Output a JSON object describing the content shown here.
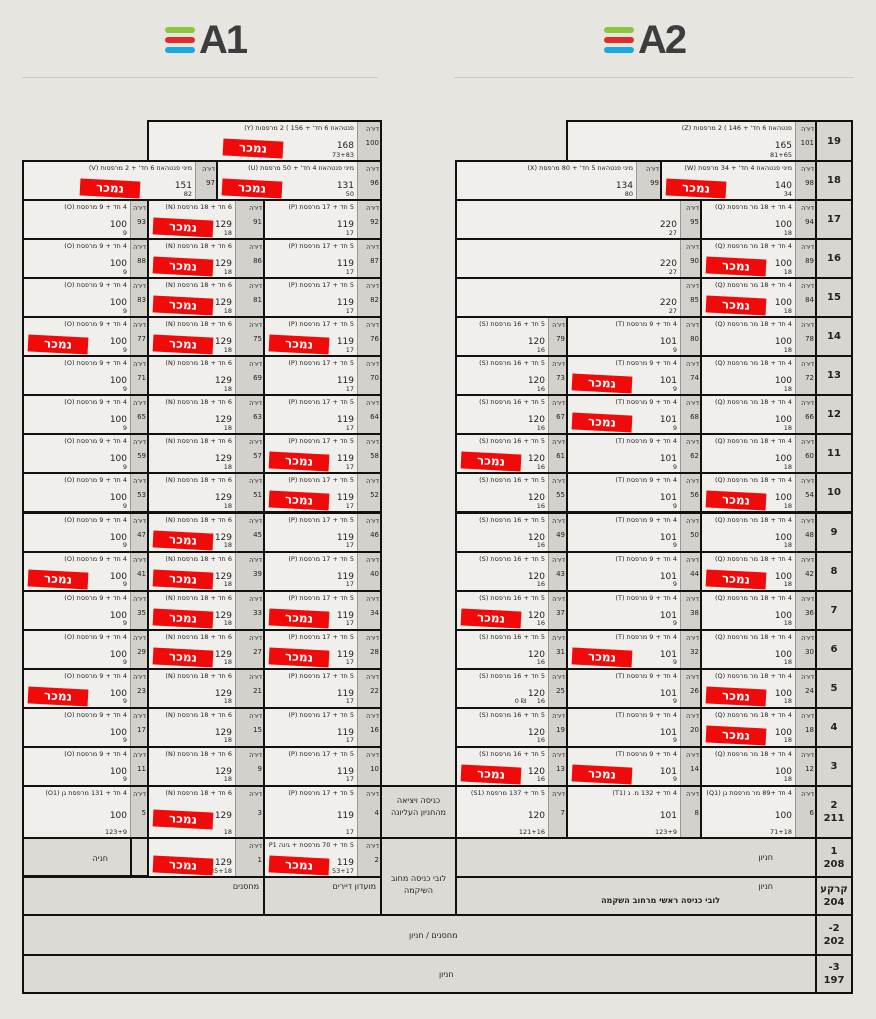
{
  "buildings": [
    {
      "name": "A1",
      "logo_colors": [
        "#8cc63f",
        "#e02b2b",
        "#19a8e6"
      ]
    },
    {
      "name": "A2",
      "logo_colors": [
        "#8cc63f",
        "#e02b2b",
        "#19a8e6"
      ]
    }
  ],
  "apt_label": "דירה",
  "sold_label": "נמכר",
  "colors": {
    "sold": "#f00a0a",
    "cell": "#f1efeb",
    "label_col": "#d3d1cb",
    "background": "#e7e5e0"
  },
  "unit_types": {
    "O": {
      "type": "4 חד + 9 מרפסת (O)",
      "area": "100",
      "bal": "9"
    },
    "N": {
      "type": "6 חד + 18 מרפסת (N)",
      "area": "129",
      "bal": "18"
    },
    "P": {
      "type": "5 חד + 17 מרפסת (P)",
      "area": "119",
      "bal": "17"
    },
    "S": {
      "type": "5 חד + 16 מרפסת (S)",
      "area": "120",
      "bal": "16"
    },
    "T": {
      "type": "4 חד + 9 מרפסת (T)",
      "area": "101",
      "bal": "9"
    },
    "Q": {
      "type": "4 חד + 18 מר מרפסת (Q)",
      "area": "100",
      "bal": "18"
    },
    "B": {
      "type": "",
      "area": "220",
      "bal": "27"
    },
    "Y": {
      "type": "פנטהאוז 6 חד' + 156 ) 2 מרפסות (Y)",
      "area": "168",
      "bal": "73+83"
    },
    "Z": {
      "type": "פנטהאוז 6 חד' + 146 ) 2 מרפסות (Z)",
      "area": "165",
      "bal": "81+65"
    },
    "V": {
      "type": "מיני פנטהאוז 6 חד' + 2 מרפסות (V)",
      "area": "151",
      "bal": "82"
    },
    "U": {
      "type": "מיני פנטהאוז 4 חד' + 50 מרפסת (U)",
      "area": "131",
      "bal": "50"
    },
    "X": {
      "type": "מיני פנטהאוז 5 חד' + 80 מרפסת (X)",
      "area": "134",
      "bal": "80"
    },
    "W": {
      "type": "מיני פנטהאוז 4 חד' + 34 מרפסת (W)",
      "area": "140",
      "bal": "34"
    },
    "O1": {
      "type": "4 חד + 131 מרפסת גן (O1)",
      "area": "100",
      "bal": "123+9"
    },
    "S1": {
      "type": "5 חד + 137 מרפסת (S1)",
      "area": "120",
      "bal": "121+16"
    },
    "T1": {
      "type": "4 חד + 132 מ. ג (T1)",
      "area": "101",
      "bal": "123+9"
    },
    "Q1": {
      "type": "4 חד +89 מר מרפסת גן (Q1)",
      "area": "100",
      "bal": "71+18"
    },
    "N0": {
      "type": "",
      "area": "129",
      "bal": "135+18"
    },
    "P1": {
      "type": "5 חד + 70 מרפסת + גינה P1",
      "area": "119",
      "bal": "53+17"
    }
  },
  "floors": [
    {
      "label": "19",
      "units": [
        {
          "u": "Y",
          "apt": "100",
          "sold": true
        },
        {
          "u": "Z",
          "apt": "101",
          "sold": false
        }
      ]
    },
    {
      "label": "18",
      "units": [
        {
          "u": "V",
          "apt": "97",
          "sold": true
        },
        {
          "u": "U",
          "apt": "96",
          "sold": true
        },
        {
          "u": "X",
          "apt": "99",
          "sold": false
        },
        {
          "u": "W",
          "apt": "98",
          "sold": true
        }
      ]
    },
    {
      "label": "17",
      "units": [
        {
          "u": "O",
          "apt": "93",
          "sold": false
        },
        {
          "u": "N",
          "apt": "91",
          "sold": true
        },
        {
          "u": "P",
          "apt": "92",
          "sold": false
        },
        {
          "u": "B",
          "apt": "95",
          "sold": false
        },
        {
          "u": "Q",
          "apt": "94",
          "sold": false
        }
      ]
    },
    {
      "label": "16",
      "units": [
        {
          "u": "O",
          "apt": "88",
          "sold": false
        },
        {
          "u": "N",
          "apt": "86",
          "sold": true
        },
        {
          "u": "P",
          "apt": "87",
          "sold": false
        },
        {
          "u": "B",
          "apt": "90",
          "sold": false
        },
        {
          "u": "Q",
          "apt": "89",
          "sold": true
        }
      ]
    },
    {
      "label": "15",
      "units": [
        {
          "u": "O",
          "apt": "83",
          "sold": false
        },
        {
          "u": "N",
          "apt": "81",
          "sold": true
        },
        {
          "u": "P",
          "apt": "82",
          "sold": false
        },
        {
          "u": "B",
          "apt": "85",
          "sold": false
        },
        {
          "u": "Q",
          "apt": "84",
          "sold": true
        }
      ]
    },
    {
      "label": "14",
      "units": [
        {
          "u": "O",
          "apt": "77",
          "sold": true
        },
        {
          "u": "N",
          "apt": "75",
          "sold": true
        },
        {
          "u": "P",
          "apt": "76",
          "sold": true
        },
        {
          "u": "S",
          "apt": "79",
          "sold": false
        },
        {
          "u": "T",
          "apt": "80",
          "sold": false
        },
        {
          "u": "Q",
          "apt": "78",
          "sold": false
        }
      ]
    },
    {
      "label": "13",
      "units": [
        {
          "u": "O",
          "apt": "71",
          "sold": false
        },
        {
          "u": "N",
          "apt": "69",
          "sold": false
        },
        {
          "u": "P",
          "apt": "70",
          "sold": false
        },
        {
          "u": "S",
          "apt": "73",
          "sold": false
        },
        {
          "u": "T",
          "apt": "74",
          "sold": true
        },
        {
          "u": "Q",
          "apt": "72",
          "sold": false
        }
      ]
    },
    {
      "label": "12",
      "units": [
        {
          "u": "O",
          "apt": "65",
          "sold": false
        },
        {
          "u": "N",
          "apt": "63",
          "sold": false
        },
        {
          "u": "P",
          "apt": "64",
          "sold": false
        },
        {
          "u": "S",
          "apt": "67",
          "sold": false
        },
        {
          "u": "T",
          "apt": "68",
          "sold": true
        },
        {
          "u": "Q",
          "apt": "66",
          "sold": false
        }
      ]
    },
    {
      "label": "11",
      "units": [
        {
          "u": "O",
          "apt": "59",
          "sold": false
        },
        {
          "u": "N",
          "apt": "57",
          "sold": false
        },
        {
          "u": "P",
          "apt": "58",
          "sold": true
        },
        {
          "u": "S",
          "apt": "61",
          "sold": true
        },
        {
          "u": "T",
          "apt": "62",
          "sold": false
        },
        {
          "u": "Q",
          "apt": "60",
          "sold": false
        }
      ]
    },
    {
      "label": "10",
      "units": [
        {
          "u": "O",
          "apt": "53",
          "sold": false
        },
        {
          "u": "N",
          "apt": "51",
          "sold": false
        },
        {
          "u": "P",
          "apt": "52",
          "sold": true
        },
        {
          "u": "S",
          "apt": "55",
          "sold": false
        },
        {
          "u": "T",
          "apt": "56",
          "sold": false
        },
        {
          "u": "Q",
          "apt": "54",
          "sold": true
        }
      ]
    },
    {
      "label": "9",
      "units": [
        {
          "u": "O",
          "apt": "47",
          "sold": false
        },
        {
          "u": "N",
          "apt": "45",
          "sold": true
        },
        {
          "u": "P",
          "apt": "46",
          "sold": false
        },
        {
          "u": "S",
          "apt": "49",
          "sold": false
        },
        {
          "u": "T",
          "apt": "50",
          "sold": false
        },
        {
          "u": "Q",
          "apt": "48",
          "sold": false
        }
      ]
    },
    {
      "label": "8",
      "units": [
        {
          "u": "O",
          "apt": "41",
          "sold": true
        },
        {
          "u": "N",
          "apt": "39",
          "sold": true
        },
        {
          "u": "P",
          "apt": "40",
          "sold": false
        },
        {
          "u": "S",
          "apt": "43",
          "sold": false
        },
        {
          "u": "T",
          "apt": "44",
          "sold": false
        },
        {
          "u": "Q",
          "apt": "42",
          "sold": true
        }
      ]
    },
    {
      "label": "7",
      "units": [
        {
          "u": "O",
          "apt": "35",
          "sold": false
        },
        {
          "u": "N",
          "apt": "33",
          "sold": true
        },
        {
          "u": "P",
          "apt": "34",
          "sold": true
        },
        {
          "u": "S",
          "apt": "37",
          "sold": true
        },
        {
          "u": "T",
          "apt": "38",
          "sold": false
        },
        {
          "u": "Q",
          "apt": "36",
          "sold": false
        }
      ]
    },
    {
      "label": "6",
      "units": [
        {
          "u": "O",
          "apt": "29",
          "sold": false
        },
        {
          "u": "N",
          "apt": "27",
          "sold": true
        },
        {
          "u": "P",
          "apt": "28",
          "sold": true
        },
        {
          "u": "S",
          "apt": "31",
          "sold": false
        },
        {
          "u": "T",
          "apt": "32",
          "sold": true
        },
        {
          "u": "Q",
          "apt": "30",
          "sold": false
        }
      ]
    },
    {
      "label": "5",
      "units": [
        {
          "u": "O",
          "apt": "23",
          "sold": true
        },
        {
          "u": "N",
          "apt": "21",
          "sold": false
        },
        {
          "u": "P",
          "apt": "22",
          "sold": false
        },
        {
          "u": "S",
          "apt": "25",
          "sold": false,
          "note": "0 ₪"
        },
        {
          "u": "T",
          "apt": "26",
          "sold": false
        },
        {
          "u": "Q",
          "apt": "24",
          "sold": true
        }
      ]
    },
    {
      "label": "4",
      "units": [
        {
          "u": "O",
          "apt": "17",
          "sold": false
        },
        {
          "u": "N",
          "apt": "15",
          "sold": false
        },
        {
          "u": "P",
          "apt": "16",
          "sold": false
        },
        {
          "u": "S",
          "apt": "19",
          "sold": false
        },
        {
          "u": "T",
          "apt": "20",
          "sold": false
        },
        {
          "u": "Q",
          "apt": "18",
          "sold": true
        }
      ]
    },
    {
      "label": "3",
      "units": [
        {
          "u": "O",
          "apt": "11",
          "sold": false
        },
        {
          "u": "N",
          "apt": "9",
          "sold": false
        },
        {
          "u": "P",
          "apt": "10",
          "sold": false
        },
        {
          "u": "S",
          "apt": "13",
          "sold": true
        },
        {
          "u": "T",
          "apt": "14",
          "sold": true
        },
        {
          "u": "Q",
          "apt": "12",
          "sold": false
        }
      ]
    },
    {
      "label": "2",
      "sub": "211",
      "units": [
        {
          "u": "O1",
          "apt": "5",
          "sold": false
        },
        {
          "u": "N",
          "apt": "3",
          "sold": true
        },
        {
          "u": "P",
          "apt": "4",
          "sold": false
        },
        {
          "u": "S1",
          "apt": "7",
          "sold": false
        },
        {
          "u": "T1",
          "apt": "8",
          "sold": false
        },
        {
          "u": "Q1",
          "apt": "6",
          "sold": false
        }
      ]
    },
    {
      "label": "1",
      "sub": "208",
      "units": [
        {
          "u": "N0",
          "apt": "1",
          "sold": true
        },
        {
          "u": "P1",
          "apt": "2",
          "sold": true
        }
      ]
    },
    {
      "label": "קרקע",
      "sub": "204",
      "units": []
    },
    {
      "label": "-2",
      "sub": "202",
      "units": []
    },
    {
      "label": "-3",
      "sub": "197",
      "units": []
    }
  ],
  "areas": {
    "upper_parking_entrance": "כניסה ויציאה מהחניון העליונה",
    "lobby_shikma": "לובי כניסה מחוב השיקמה",
    "a1_floor1_parking": "חניה",
    "a2_floor1_parking": "חניון",
    "a2_ground_parking": "חניון",
    "a2_ground_lobby": "לובי כניסה ראשי מרחוב השקמה",
    "a1_ground_storage": "מחסנים",
    "a1_ground_club": "מועדון דיירים",
    "basement2": "מחסנים / חניון",
    "basement3": "חניון"
  }
}
